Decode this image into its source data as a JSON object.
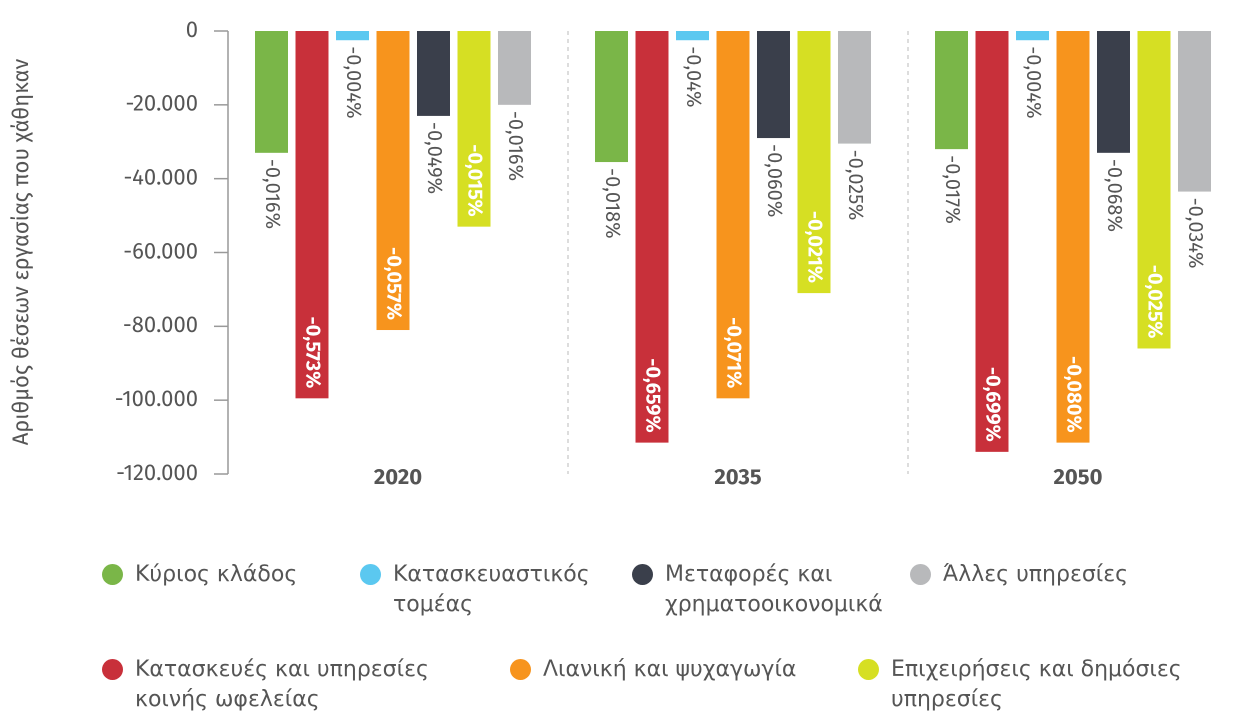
{
  "chart_data": {
    "type": "bar",
    "y_label": "Αριθμός θέσεων εργασίας που χάθηκαν",
    "categories": [
      "2020",
      "2035",
      "2050"
    ],
    "ylim": [
      -120000,
      0
    ],
    "yticks": [
      0,
      {
        "value": -20000,
        "label": "-20.000"
      },
      {
        "value": -40000,
        "label": "-40.000"
      },
      {
        "value": -60000,
        "label": "-60.000"
      },
      {
        "value": -80000,
        "label": "-80.000"
      },
      {
        "value": -100000,
        "label": "-100.000"
      },
      {
        "value": -120000,
        "label": "-120.000"
      }
    ],
    "series": [
      {
        "name": "Κύριος κλάδος",
        "color": "#7ab648",
        "values": [
          -33000,
          -35500,
          -32000
        ],
        "value_labels": [
          "-0,016%",
          "-0,018%",
          "-0,017%"
        ]
      },
      {
        "name": "Κατασκευές και υπηρεσίες κοινής ωφελείας",
        "color": "#c8303a",
        "values": [
          -99500,
          -111500,
          -114000
        ],
        "value_labels": [
          "-0,573%",
          "-0,659%",
          "-0,699%"
        ]
      },
      {
        "name": "Κατασκευαστικός τομέας",
        "color": "#5bc8f0",
        "values": [
          -2500,
          -2500,
          -2500
        ],
        "value_labels": [
          "-0,004%",
          "-0,04%",
          "-0,004%"
        ]
      },
      {
        "name": "Λιανική και ψυχαγωγία",
        "color": "#f7941d",
        "values": [
          -81000,
          -99500,
          -111500
        ],
        "value_labels": [
          "-0,057%",
          "-0,071%",
          "-0,080%"
        ]
      },
      {
        "name": "Μεταφορές και χρηματοοικονομικά",
        "color": "#3a3f4b",
        "values": [
          -23000,
          -29000,
          -33000
        ],
        "value_labels": [
          "-0,049%",
          "-0,060%",
          "-0,068%"
        ]
      },
      {
        "name": "Επιχειρήσεις και δημόσιες υπηρεσίες",
        "color": "#d6df23",
        "values": [
          -53000,
          -71000,
          -86000
        ],
        "value_labels": [
          "-0,015%",
          "-0,021%",
          "-0,025%"
        ]
      },
      {
        "name": "Άλλες υπηρεσίες",
        "color": "#b8b9bb",
        "values": [
          -20000,
          -30500,
          -43500
        ],
        "value_labels": [
          "-0,016%",
          "-0,025%",
          "-0,034%"
        ]
      }
    ]
  }
}
